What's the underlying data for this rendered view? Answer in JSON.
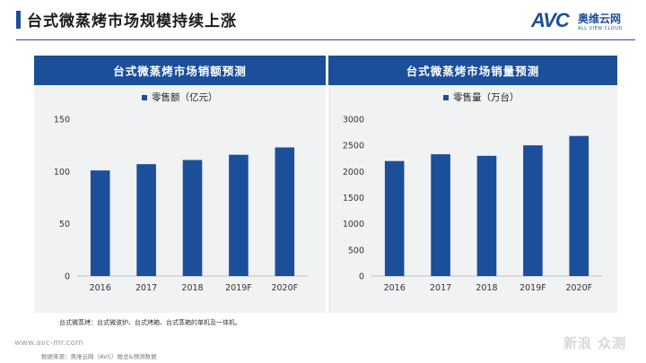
{
  "page_title": "台式微蒸烤市场规模持续上涨",
  "logo": {
    "brand": "AVC",
    "name_cn": "奥维云网",
    "name_en": "ALL VIEW CLOUD"
  },
  "colors": {
    "bar": "#1b4f9a",
    "header": "#1b4f9a",
    "panel_bg": "#f1f2f4"
  },
  "chart_data": [
    {
      "type": "bar",
      "title": "台式微蒸烤市场销额预测",
      "legend": "零售额（亿元）",
      "categories": [
        "2016",
        "2017",
        "2018",
        "2019F",
        "2020F"
      ],
      "values": [
        101,
        107,
        111,
        116,
        123
      ],
      "ylim": [
        0,
        150
      ],
      "yticks": [
        "0",
        "50",
        "100",
        "150"
      ],
      "grid": false,
      "legend_position": "top-left"
    },
    {
      "type": "bar",
      "title": "台式微蒸烤市场销量预测",
      "legend": "零售量（万台）",
      "categories": [
        "2016",
        "2017",
        "2018",
        "2019F",
        "2020F"
      ],
      "values": [
        2200,
        2330,
        2300,
        2500,
        2680
      ],
      "ylim": [
        0,
        3000
      ],
      "yticks": [
        "0",
        "500",
        "1000",
        "1500",
        "2000",
        "2500",
        "3000"
      ],
      "grid": false,
      "legend_position": "top-left"
    }
  ],
  "footnote": "台式微蒸烤：台式微波炉、台式烤箱、台式蒸箱的单机及一体机。",
  "url": "www.avc-mr.com",
  "source": "数据来源：奥维云网（AVC）推总&预测数据",
  "watermark": "新浪 众测"
}
